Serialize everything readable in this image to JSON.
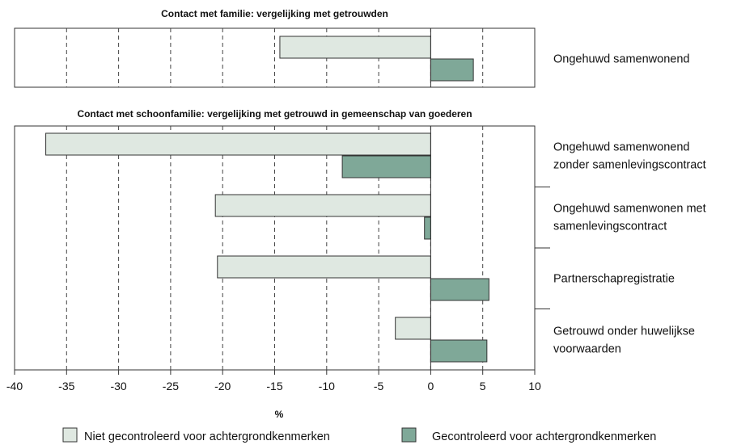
{
  "chart_data": {
    "type": "bar",
    "orientation": "horizontal",
    "xlabel": "%",
    "xlim": [
      -40,
      10
    ],
    "x_ticks": [
      "-40",
      "-35",
      "-30",
      "-25",
      "-20",
      "-15",
      "-10",
      "-5",
      "0",
      "5",
      "10"
    ],
    "grid": "vertical dashed",
    "legend_position": "bottom",
    "colors": {
      "uncontrolled": "#dfe8e1",
      "controlled": "#7fa898",
      "edge": "#333333"
    },
    "series": [
      {
        "name": "Niet gecontroleerd voor achtergrondkenmerken",
        "key": "uncontrolled"
      },
      {
        "name": "Gecontroleerd voor achtergrondkenmerken",
        "key": "controlled"
      }
    ],
    "panels": [
      {
        "title": "Contact met familie: vergelijking met getrouwden",
        "categories": [
          {
            "label_lines": [
              "Ongehuwd samenwonend"
            ],
            "values": [
              -14.5,
              4.1
            ]
          }
        ]
      },
      {
        "title": "Contact met schoonfamilie: vergelijking met getrouwd in gemeenschap van goederen",
        "categories": [
          {
            "label_lines": [
              "Ongehuwd samenwonend",
              "zonder samenlevingscontract"
            ],
            "values": [
              -37,
              -8.5
            ]
          },
          {
            "label_lines": [
              "Ongehuwd samenwonen met",
              "samenlevingscontract"
            ],
            "values": [
              -20.7,
              -0.6
            ]
          },
          {
            "label_lines": [
              "Partnerschapregistratie"
            ],
            "values": [
              -20.5,
              5.6
            ]
          },
          {
            "label_lines": [
              "Getrouwd onder huwelijkse",
              "voorwaarden"
            ],
            "values": [
              -3.4,
              5.4
            ]
          }
        ]
      }
    ]
  }
}
